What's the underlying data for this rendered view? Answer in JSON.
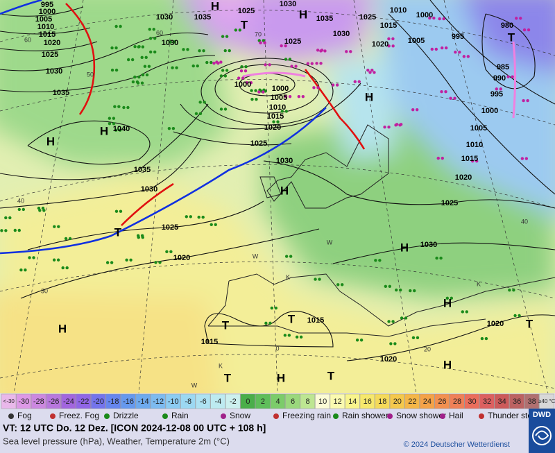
{
  "map": {
    "pressure_labels": [
      "995",
      "1000",
      "1005",
      "1010",
      "1015",
      "1020",
      "1025",
      "1030",
      "1035",
      "1040",
      "1035",
      "1030",
      "1025",
      "1020",
      "1030",
      "1035",
      "1025",
      "1030",
      "1035",
      "1030",
      "1025",
      "1000",
      "1000",
      "1005",
      "1010",
      "1015",
      "1020",
      "1025",
      "1030",
      "1030",
      "1025",
      "1010",
      "1000",
      "1015",
      "1020",
      "1005",
      "995",
      "980",
      "985",
      "990",
      "995",
      "1000",
      "1005",
      "1010",
      "1015",
      "1020",
      "1025",
      "1030",
      "1015",
      "1015",
      "1020",
      "1020"
    ],
    "pressure_letters": [
      "H",
      "H",
      "H",
      "T",
      "H",
      "T",
      "T",
      "H",
      "T",
      "T",
      "H",
      "H",
      "T",
      "H",
      "T",
      "H",
      "T",
      "H",
      "H"
    ],
    "graticule_labels": [
      "60",
      "50",
      "40",
      "30",
      "20",
      "60",
      "70",
      "40",
      "0",
      "W",
      "W",
      "W",
      "K",
      "K",
      "K"
    ]
  },
  "legend": {
    "temperature_scale": [
      {
        "label": "<-30",
        "color": "#e9b8ea"
      },
      {
        "label": "-30",
        "color": "#dd99e6"
      },
      {
        "label": "-28",
        "color": "#cc88e0"
      },
      {
        "label": "-26",
        "color": "#b877dd"
      },
      {
        "label": "-24",
        "color": "#a266de"
      },
      {
        "label": "-22",
        "color": "#9066e6"
      },
      {
        "label": "-20",
        "color": "#7474ec"
      },
      {
        "label": "-18",
        "color": "#6686ee"
      },
      {
        "label": "-16",
        "color": "#6699ee"
      },
      {
        "label": "-14",
        "color": "#6eaaee"
      },
      {
        "label": "-12",
        "color": "#7dbbf0"
      },
      {
        "label": "-10",
        "color": "#8cccf2"
      },
      {
        "label": "-8",
        "color": "#9cd8f2"
      },
      {
        "label": "-6",
        "color": "#aee2f2"
      },
      {
        "label": "-4",
        "color": "#bdeaf0"
      },
      {
        "label": "-2",
        "color": "#ccf0ee"
      },
      {
        "label": "0",
        "color": "#4aae4a"
      },
      {
        "label": "2",
        "color": "#5fbe5a"
      },
      {
        "label": "4",
        "color": "#7ccc6a"
      },
      {
        "label": "6",
        "color": "#9ad87c"
      },
      {
        "label": "8",
        "color": "#bde692"
      },
      {
        "label": "10",
        "color": "#fbfbd6"
      },
      {
        "label": "12",
        "color": "#fafab0"
      },
      {
        "label": "14",
        "color": "#f8f48c"
      },
      {
        "label": "16",
        "color": "#f6e86c"
      },
      {
        "label": "18",
        "color": "#f4da5a"
      },
      {
        "label": "20",
        "color": "#f4c84c"
      },
      {
        "label": "22",
        "color": "#f4b648"
      },
      {
        "label": "24",
        "color": "#f4a248"
      },
      {
        "label": "26",
        "color": "#f29050"
      },
      {
        "label": "28",
        "color": "#ef8058"
      },
      {
        "label": "30",
        "color": "#ea6e5c"
      },
      {
        "label": "32",
        "color": "#dc6060"
      },
      {
        "label": "34",
        "color": "#cc5a5a"
      },
      {
        "label": "36",
        "color": "#bc6262"
      },
      {
        "label": "38",
        "color": "#b07070"
      },
      {
        "label": "≥40 °C",
        "color": "#d8d8d8"
      }
    ],
    "weather": [
      "Fog",
      "Freez. Fog",
      "Drizzle",
      "Rain",
      "Snow",
      "Freezing rain",
      "Rain shower",
      "Snow shower",
      "Hail",
      "Thunder storm"
    ]
  },
  "footer": {
    "valid_time": "VT: 12 UTC Do.  12 Dez. [ICON 2024-12-08  00 UTC + 108 h]",
    "description": "Sea level pressure (hPa), Weather, Temperature 2m (°C)",
    "copyright": "© 2024 Deutscher Wetterdienst",
    "logo": "DWD"
  }
}
